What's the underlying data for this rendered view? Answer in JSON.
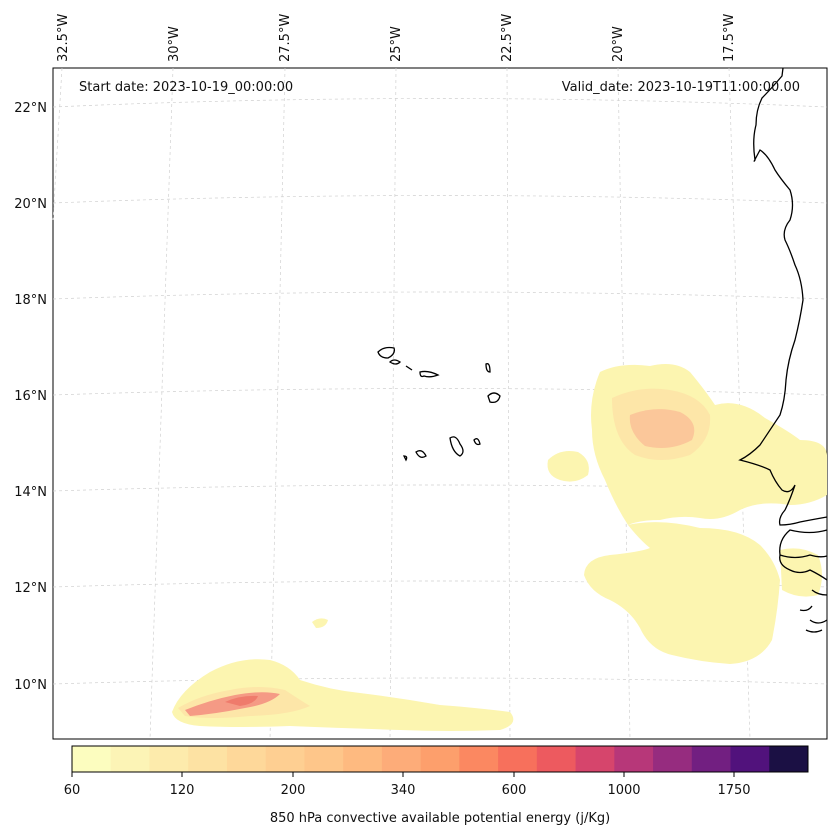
{
  "header": {
    "start_date": "Start date: 2023-10-19_00:00:00",
    "valid_date": "Valid_date: 2023-10-19T11:00:00.00"
  },
  "axes": {
    "lon_labels": [
      "32.5°W",
      "30°W",
      "27.5°W",
      "25°W",
      "22.5°W",
      "20°W",
      "17.5°W"
    ],
    "lat_labels": [
      "22°N",
      "20°N",
      "18°N",
      "16°N",
      "14°N",
      "12°N",
      "10°N"
    ]
  },
  "colorbar": {
    "label": "850 hPa convective available potential energy (j/Kg)",
    "tick_labels": [
      "60",
      "120",
      "200",
      "340",
      "600",
      "1000",
      "1750"
    ],
    "colors": [
      "#fcfdbf",
      "#fcf4b6",
      "#fdebac",
      "#fde2a3",
      "#fed89a",
      "#fecf92",
      "#fec68a",
      "#feba80",
      "#fdac79",
      "#fd9f6c",
      "#fb8861",
      "#f7705c",
      "#ed5a5f",
      "#d6456c",
      "#b73779",
      "#962c7f",
      "#721f81",
      "#51127c",
      "#1b1044"
    ]
  },
  "map_layers": {
    "fill_colors": {
      "cape_low": "#fcf5b0",
      "cape_mid": "#fde6a8",
      "cape_peak": "#fbc79a",
      "cape_high": "#f59a85",
      "cape_max": "#ef7b6c",
      "coast": "#000000",
      "grid": "#cccccc"
    }
  }
}
